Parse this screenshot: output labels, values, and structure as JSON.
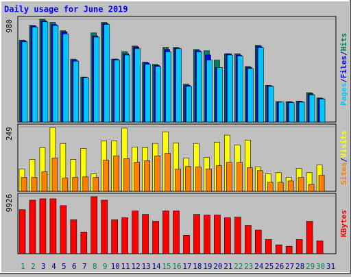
{
  "legend_separator": "/",
  "chart_data": [
    {
      "type": "bar",
      "title": "Daily usage for June 2019",
      "categories": [
        "1",
        "2",
        "3",
        "4",
        "5",
        "6",
        "7",
        "8",
        "9",
        "10",
        "11",
        "12",
        "13",
        "14",
        "15",
        "16",
        "17",
        "18",
        "19",
        "20",
        "21",
        "22",
        "23",
        "24",
        "25",
        "26",
        "27",
        "28",
        "29",
        "30",
        "31"
      ],
      "category_colors": [
        "#00805c",
        "#00805c",
        "#000080",
        "#000080",
        "#000080",
        "#000080",
        "#000080",
        "#00805c",
        "#00805c",
        "#000080",
        "#000080",
        "#000080",
        "#000080",
        "#000080",
        "#00805c",
        "#00805c",
        "#000080",
        "#000080",
        "#000080",
        "#000080",
        "#000080",
        "#00805c",
        "#00805c",
        "#000080",
        "#000080",
        "#000080",
        "#000080",
        "#000080",
        "#00805c",
        "#00805c",
        "#000080"
      ],
      "ylim": [
        0,
        980
      ],
      "yticks": [
        980
      ],
      "series": [
        {
          "name": "Hits",
          "color": "#00805c",
          "values": [
            780,
            920,
            980,
            950,
            870,
            600,
            430,
            850,
            950,
            600,
            670,
            725,
            570,
            550,
            710,
            710,
            360,
            690,
            680,
            590,
            650,
            650,
            530,
            730,
            350,
            195,
            195,
            200,
            280,
            230,
            null
          ]
        },
        {
          "name": "Files",
          "color": "#0000ff",
          "values": [
            775,
            915,
            965,
            930,
            860,
            590,
            425,
            820,
            940,
            600,
            650,
            715,
            565,
            540,
            690,
            705,
            350,
            680,
            640,
            520,
            650,
            640,
            520,
            720,
            345,
            190,
            190,
            195,
            270,
            225,
            null
          ]
        },
        {
          "name": "Pages",
          "color": "#00c8ff",
          "values": [
            765,
            905,
            955,
            920,
            840,
            580,
            420,
            810,
            930,
            590,
            640,
            700,
            550,
            530,
            670,
            700,
            340,
            670,
            590,
            520,
            640,
            630,
            510,
            710,
            340,
            190,
            185,
            190,
            260,
            220,
            null
          ]
        }
      ]
    },
    {
      "type": "bar",
      "ylim": [
        0,
        249
      ],
      "yticks": [
        249
      ],
      "series": [
        {
          "name": "Visits",
          "color": "#ffff00",
          "values": [
            86,
            123,
            169,
            246,
            185,
            123,
            166,
            67,
            195,
            195,
            244,
            171,
            169,
            185,
            230,
            187,
            128,
            185,
            131,
            190,
            217,
            179,
            198,
            94,
            67,
            72,
            54,
            88,
            72,
            102,
            null
          ]
        },
        {
          "name": "Sites",
          "color": "#ff8000",
          "values": [
            54,
            54,
            75,
            129,
            51,
            54,
            56,
            54,
            120,
            137,
            126,
            112,
            118,
            137,
            147,
            86,
            96,
            94,
            86,
            99,
            112,
            112,
            91,
            80,
            35,
            35,
            40,
            54,
            27,
            62,
            null
          ]
        }
      ]
    },
    {
      "type": "bar",
      "ylim": [
        0,
        9926
      ],
      "yticks": [
        9926
      ],
      "series": [
        {
          "name": "KBytes",
          "color": "#ff0000",
          "values": [
            7590,
            9225,
            9460,
            9460,
            8290,
            5840,
            3740,
            9810,
            9225,
            5840,
            6190,
            7360,
            6770,
            5600,
            7360,
            7360,
            3150,
            6770,
            6660,
            6660,
            6190,
            6310,
            4900,
            4090,
            2450,
            1520,
            1280,
            2450,
            5600,
            2220,
            null
          ]
        }
      ]
    }
  ]
}
